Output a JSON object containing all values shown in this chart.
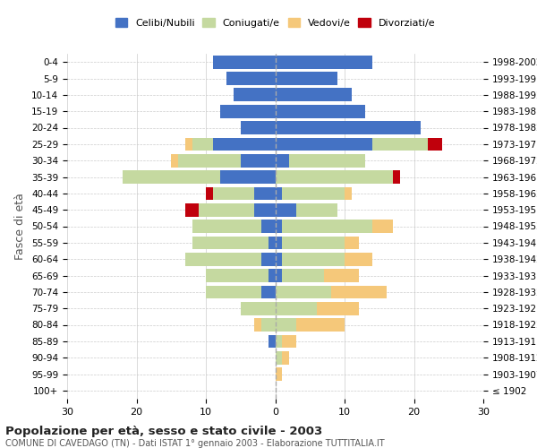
{
  "age_groups": [
    "100+",
    "95-99",
    "90-94",
    "85-89",
    "80-84",
    "75-79",
    "70-74",
    "65-69",
    "60-64",
    "55-59",
    "50-54",
    "45-49",
    "40-44",
    "35-39",
    "30-34",
    "25-29",
    "20-24",
    "15-19",
    "10-14",
    "5-9",
    "0-4"
  ],
  "birth_years": [
    "≤ 1902",
    "1903-1907",
    "1908-1912",
    "1913-1917",
    "1918-1922",
    "1923-1927",
    "1928-1932",
    "1933-1937",
    "1938-1942",
    "1943-1947",
    "1948-1952",
    "1953-1957",
    "1958-1962",
    "1963-1967",
    "1968-1972",
    "1973-1977",
    "1978-1982",
    "1983-1987",
    "1988-1992",
    "1993-1997",
    "1998-2002"
  ],
  "males": {
    "celibi": [
      0,
      0,
      0,
      1,
      0,
      0,
      2,
      1,
      2,
      1,
      2,
      3,
      3,
      8,
      5,
      9,
      5,
      8,
      6,
      7,
      9
    ],
    "coniugati": [
      0,
      0,
      0,
      0,
      2,
      5,
      8,
      9,
      11,
      11,
      10,
      8,
      6,
      14,
      9,
      3,
      0,
      0,
      0,
      0,
      0
    ],
    "vedovi": [
      0,
      0,
      0,
      0,
      1,
      0,
      0,
      0,
      0,
      0,
      0,
      0,
      0,
      0,
      1,
      1,
      0,
      0,
      0,
      0,
      0
    ],
    "divorziati": [
      0,
      0,
      0,
      0,
      0,
      0,
      0,
      0,
      0,
      0,
      0,
      2,
      1,
      0,
      0,
      0,
      0,
      0,
      0,
      0,
      0
    ]
  },
  "females": {
    "nubili": [
      0,
      0,
      0,
      0,
      0,
      0,
      0,
      1,
      1,
      1,
      1,
      3,
      1,
      0,
      2,
      14,
      21,
      13,
      11,
      9,
      14
    ],
    "coniugate": [
      0,
      0,
      1,
      1,
      3,
      6,
      8,
      6,
      9,
      9,
      13,
      6,
      9,
      17,
      11,
      8,
      0,
      0,
      0,
      0,
      0
    ],
    "vedove": [
      0,
      1,
      1,
      2,
      7,
      6,
      8,
      5,
      4,
      2,
      3,
      0,
      1,
      0,
      0,
      0,
      0,
      0,
      0,
      0,
      0
    ],
    "divorziate": [
      0,
      0,
      0,
      0,
      0,
      0,
      0,
      0,
      0,
      0,
      0,
      0,
      0,
      1,
      0,
      2,
      0,
      0,
      0,
      0,
      0
    ]
  },
  "colors": {
    "celibi": "#4472c4",
    "coniugati": "#c5d9a0",
    "vedovi": "#f5c87a",
    "divorziati": "#c0000c"
  },
  "xlim": 30,
  "title": "Popolazione per età, sesso e stato civile - 2003",
  "subtitle": "COMUNE DI CAVEDAGO (TN) - Dati ISTAT 1° gennaio 2003 - Elaborazione TUTTITALIA.IT",
  "legend_labels": [
    "Celibi/Nubili",
    "Coniugati/e",
    "Vedovi/e",
    "Divorziati/e"
  ],
  "fasce_label": "Fasce di età",
  "background_color": "#ffffff",
  "grid_color": "#cccccc",
  "bar_height": 0.8
}
